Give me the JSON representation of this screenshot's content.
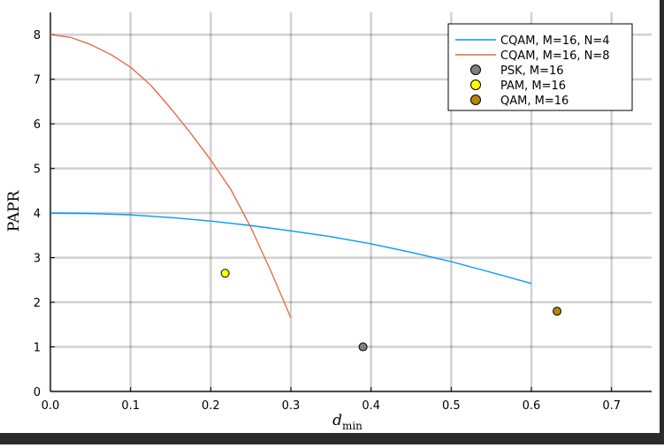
{
  "chart_data": {
    "type": "scatter",
    "title": "",
    "xlabel": "d",
    "xlabel_sub": "min",
    "ylabel": "PAPR",
    "xlim": [
      0,
      0.75
    ],
    "ylim": [
      0,
      8.5
    ],
    "xticks": [
      0.0,
      0.1,
      0.2,
      0.3,
      0.4,
      0.5,
      0.6,
      0.7
    ],
    "xtick_labels": [
      "0.0",
      "0.1",
      "0.2",
      "0.3",
      "0.4",
      "0.5",
      "0.6",
      "0.7"
    ],
    "yticks": [
      0,
      1,
      2,
      3,
      4,
      5,
      6,
      7,
      8
    ],
    "ytick_labels": [
      "0",
      "1",
      "2",
      "3",
      "4",
      "5",
      "6",
      "7",
      "8"
    ],
    "grid": true,
    "legend_position": "top-right",
    "series": [
      {
        "name": "CQAM, M=16, N=4",
        "kind": "line",
        "color": "#009af9",
        "x": [
          0.0,
          0.05,
          0.1,
          0.15,
          0.2,
          0.25,
          0.3,
          0.35,
          0.4,
          0.45,
          0.5,
          0.55,
          0.6
        ],
        "y": [
          4.0,
          3.99,
          3.96,
          3.9,
          3.82,
          3.72,
          3.6,
          3.47,
          3.31,
          3.12,
          2.91,
          2.67,
          2.42
        ]
      },
      {
        "name": "CQAM, M=16, N=8",
        "kind": "line",
        "color": "#e26f46",
        "x": [
          0.0,
          0.025,
          0.05,
          0.075,
          0.1,
          0.125,
          0.15,
          0.175,
          0.2,
          0.225,
          0.25,
          0.275,
          0.3
        ],
        "y": [
          8.0,
          7.94,
          7.78,
          7.56,
          7.27,
          6.87,
          6.35,
          5.79,
          5.19,
          4.53,
          3.68,
          2.7,
          1.65
        ]
      },
      {
        "name": "PSK, M=16",
        "kind": "point",
        "color": "#808080",
        "x": [
          0.39
        ],
        "y": [
          1.0
        ]
      },
      {
        "name": "PAM, M=16",
        "kind": "point",
        "color": "#ffff00",
        "x": [
          0.218
        ],
        "y": [
          2.65
        ]
      },
      {
        "name": "QAM, M=16",
        "kind": "point",
        "color": "#b8860b",
        "x": [
          0.632
        ],
        "y": [
          1.8
        ]
      }
    ]
  }
}
